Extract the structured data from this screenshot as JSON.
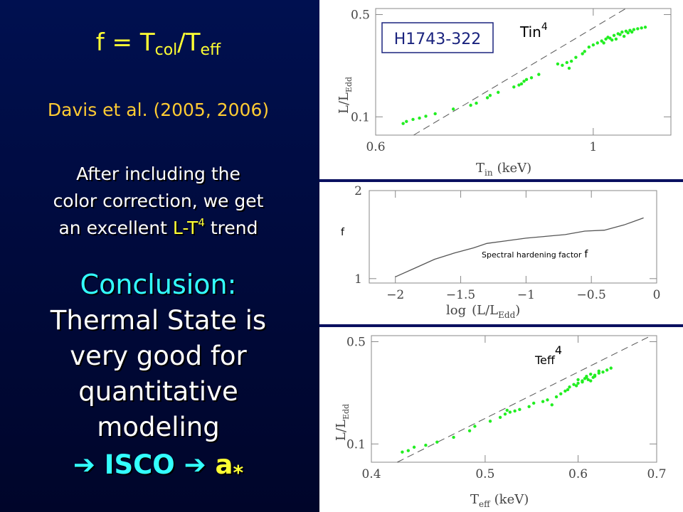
{
  "left": {
    "formula": {
      "f": "f = T",
      "col": "col",
      "slash": "/T",
      "eff": "eff"
    },
    "citation": "Davis et al. (2005, 2006)",
    "paragraph": {
      "line1": "After including the",
      "line2": "color correction, we get",
      "line3_pre": "an excellent ",
      "line3_hl": "L-T",
      "line3_sup": "4",
      "line3_post": " trend"
    },
    "conclusion": "Conclusion:",
    "thermal": [
      "Thermal State is",
      "very good for",
      "quantitative",
      "modeling"
    ],
    "isco": {
      "arrow1": "➔",
      "isco": " ISCO ",
      "arrow2": "➔",
      "a": " a",
      "star": "*"
    }
  },
  "colors": {
    "accent_yellow": "#ffff33",
    "accent_cyan": "#33ffff",
    "citation": "#ffcc33",
    "data_green": "#22ee22"
  },
  "chart_data": [
    {
      "type": "scatter",
      "title": "H1743-322",
      "xlabel": "T",
      "xlabel_sub": "in",
      "xlabel_unit": "(keV)",
      "ylabel": "L/L",
      "ylabel_sub": "Edd",
      "xscale": "log",
      "yscale": "log",
      "xlim": [
        0.6,
        1.2
      ],
      "ylim": [
        0.075,
        0.55
      ],
      "xticks": [
        {
          "v": 0.6,
          "label": "0.6"
        },
        {
          "v": 1,
          "label": "1"
        }
      ],
      "yticks": [
        {
          "v": 0.1,
          "label": "0.1"
        },
        {
          "v": 0.5,
          "label": "0.5"
        }
      ],
      "line_label": "Tin",
      "line_label_sup": "4",
      "line": {
        "slope": 4,
        "x0": 1.0,
        "y0": 0.405
      },
      "points": [
        [
          0.64,
          0.09
        ],
        [
          0.645,
          0.093
        ],
        [
          0.655,
          0.096
        ],
        [
          0.665,
          0.098
        ],
        [
          0.675,
          0.101
        ],
        [
          0.69,
          0.105
        ],
        [
          0.72,
          0.113
        ],
        [
          0.75,
          0.12
        ],
        [
          0.76,
          0.124
        ],
        [
          0.78,
          0.135
        ],
        [
          0.785,
          0.14
        ],
        [
          0.8,
          0.147
        ],
        [
          0.83,
          0.16
        ],
        [
          0.84,
          0.165
        ],
        [
          0.845,
          0.168
        ],
        [
          0.85,
          0.175
        ],
        [
          0.855,
          0.18
        ],
        [
          0.865,
          0.185
        ],
        [
          0.88,
          0.195
        ],
        [
          0.92,
          0.23
        ],
        [
          0.93,
          0.225
        ],
        [
          0.94,
          0.235
        ],
        [
          0.945,
          0.215
        ],
        [
          0.95,
          0.24
        ],
        [
          0.96,
          0.255
        ],
        [
          0.975,
          0.27
        ],
        [
          0.98,
          0.28
        ],
        [
          0.99,
          0.3
        ],
        [
          1.0,
          0.31
        ],
        [
          1.01,
          0.32
        ],
        [
          1.02,
          0.33
        ],
        [
          1.03,
          0.34
        ],
        [
          1.035,
          0.35
        ],
        [
          1.04,
          0.345
        ],
        [
          1.05,
          0.36
        ],
        [
          1.06,
          0.37
        ],
        [
          1.065,
          0.365
        ],
        [
          1.07,
          0.38
        ],
        [
          1.08,
          0.385
        ],
        [
          1.09,
          0.39
        ],
        [
          1.1,
          0.395
        ],
        [
          1.11,
          0.4
        ],
        [
          1.12,
          0.405
        ],
        [
          1.13,
          0.41
        ],
        [
          1.045,
          0.335
        ],
        [
          1.055,
          0.34
        ],
        [
          1.075,
          0.355
        ],
        [
          1.085,
          0.375
        ],
        [
          1.095,
          0.38
        ],
        [
          1.025,
          0.32
        ]
      ]
    },
    {
      "type": "line",
      "xlabel": "log",
      "xlabel_arg": "(L/L",
      "xlabel_sub": "Edd",
      "xlabel_close": ")",
      "ylabel": "f",
      "xlim": [
        -2.2,
        0
      ],
      "ylim": [
        0.95,
        2.0
      ],
      "xticks": [
        {
          "v": -2,
          "label": "−2"
        },
        {
          "v": -1.5,
          "label": "−1.5"
        },
        {
          "v": -1,
          "label": "−1"
        },
        {
          "v": -0.5,
          "label": "−0.5"
        },
        {
          "v": 0,
          "label": "0"
        }
      ],
      "yticks": [
        {
          "v": 1,
          "label": "1"
        },
        {
          "v": 2,
          "label": "2"
        }
      ],
      "annotation": "Spectral hardening factor",
      "annotation_f": "f",
      "x": [
        -2.0,
        -1.85,
        -1.7,
        -1.55,
        -1.4,
        -1.3,
        -1.15,
        -1.0,
        -0.85,
        -0.7,
        -0.55,
        -0.4,
        -0.25,
        -0.1
      ],
      "y": [
        1.02,
        1.12,
        1.22,
        1.29,
        1.35,
        1.4,
        1.43,
        1.46,
        1.48,
        1.5,
        1.54,
        1.55,
        1.61,
        1.69
      ]
    },
    {
      "type": "scatter",
      "xlabel": "T",
      "xlabel_sub": "eff",
      "xlabel_unit": "(keV)",
      "ylabel": "L/L",
      "ylabel_sub": "Edd",
      "xscale": "log",
      "yscale": "log",
      "xlim": [
        0.4,
        0.7
      ],
      "ylim": [
        0.075,
        0.55
      ],
      "xticks": [
        {
          "v": 0.4,
          "label": "0.4"
        },
        {
          "v": 0.5,
          "label": "0.5"
        },
        {
          "v": 0.6,
          "label": "0.6"
        },
        {
          "v": 0.7,
          "label": "0.7"
        }
      ],
      "yticks": [
        {
          "v": 0.1,
          "label": "0.1"
        },
        {
          "v": 0.5,
          "label": "0.5"
        }
      ],
      "line_label": "Teff",
      "line_label_sup": "4",
      "line": {
        "slope": 4,
        "x0": 0.6,
        "y0": 0.31
      },
      "points": [
        [
          0.425,
          0.088
        ],
        [
          0.43,
          0.09
        ],
        [
          0.435,
          0.095
        ],
        [
          0.445,
          0.098
        ],
        [
          0.455,
          0.103
        ],
        [
          0.47,
          0.111
        ],
        [
          0.485,
          0.123
        ],
        [
          0.49,
          0.132
        ],
        [
          0.505,
          0.143
        ],
        [
          0.515,
          0.152
        ],
        [
          0.52,
          0.16
        ],
        [
          0.522,
          0.17
        ],
        [
          0.525,
          0.165
        ],
        [
          0.53,
          0.168
        ],
        [
          0.535,
          0.172
        ],
        [
          0.545,
          0.18
        ],
        [
          0.55,
          0.19
        ],
        [
          0.56,
          0.195
        ],
        [
          0.565,
          0.2
        ],
        [
          0.57,
          0.185
        ],
        [
          0.575,
          0.21
        ],
        [
          0.58,
          0.22
        ],
        [
          0.585,
          0.23
        ],
        [
          0.59,
          0.245
        ],
        [
          0.595,
          0.255
        ],
        [
          0.6,
          0.26
        ],
        [
          0.605,
          0.27
        ],
        [
          0.608,
          0.28
        ],
        [
          0.61,
          0.29
        ],
        [
          0.612,
          0.275
        ],
        [
          0.615,
          0.3
        ],
        [
          0.618,
          0.285
        ],
        [
          0.62,
          0.295
        ],
        [
          0.625,
          0.305
        ],
        [
          0.63,
          0.31
        ],
        [
          0.635,
          0.32
        ],
        [
          0.64,
          0.33
        ],
        [
          0.605,
          0.265
        ],
        [
          0.61,
          0.285
        ],
        [
          0.615,
          0.27
        ],
        [
          0.62,
          0.29
        ],
        [
          0.625,
          0.315
        ],
        [
          0.6,
          0.275
        ],
        [
          0.598,
          0.25
        ],
        [
          0.588,
          0.235
        ]
      ]
    }
  ]
}
